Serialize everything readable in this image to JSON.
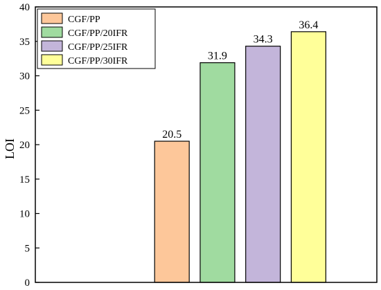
{
  "chart_data": {
    "type": "bar",
    "categories": [
      "CGF/PP",
      "CGF/PP/20IFR",
      "CGF/PP/25IFR",
      "CGF/PP/30IFR"
    ],
    "values": [
      20.5,
      31.9,
      34.3,
      36.4
    ],
    "value_labels": [
      "20.5",
      "31.9",
      "34.3",
      "36.4"
    ],
    "colors": [
      "#FDC79A",
      "#A0DBA0",
      "#C3B5DA",
      "#FFFF99"
    ],
    "title": "",
    "xlabel": "",
    "ylabel": "LOI",
    "ylim": [
      0,
      40
    ],
    "yticks": [
      "0",
      "5",
      "10",
      "15",
      "20",
      "25",
      "30",
      "35",
      "40"
    ],
    "x_tick_labels": "none",
    "grid": false,
    "legend_position": "top-left"
  }
}
